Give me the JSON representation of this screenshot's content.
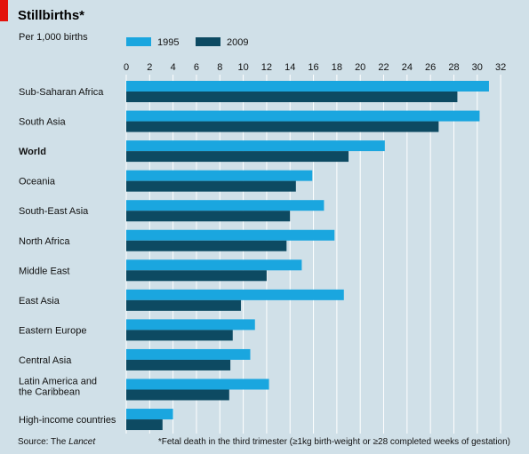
{
  "header": {
    "title": "Stillbirths*",
    "subtitle": "Per 1,000 births"
  },
  "colors": {
    "background": "#d0e0e8",
    "accent_tab": "#e3120b",
    "series_1995": "#1aa6df",
    "series_2009": "#0d4a62",
    "gridline": "#ffffff"
  },
  "footer": {
    "source_prefix": "Source: The ",
    "source_name": "Lancet",
    "note": "*Fetal death in the third trimester (≥1kg birth-weight or ≥28 completed weeks of gestation)"
  },
  "chart_data": {
    "type": "bar",
    "orientation": "horizontal",
    "title": "Stillbirths*",
    "subtitle": "Per 1,000 births",
    "xlim": [
      0,
      32
    ],
    "xticks": [
      0,
      2,
      4,
      6,
      8,
      10,
      12,
      14,
      16,
      18,
      20,
      22,
      24,
      26,
      28,
      30,
      32
    ],
    "grid": true,
    "legend_position": "top-left",
    "categories": [
      "Sub-Saharan Africa",
      "South Asia",
      "World",
      "Oceania",
      "South-East Asia",
      "North Africa",
      "Middle East",
      "East Asia",
      "Eastern Europe",
      "Central Asia",
      "Latin America and the Caribbean",
      "High-income countries"
    ],
    "category_label_lines": [
      [
        "Sub-Saharan Africa"
      ],
      [
        "South Asia"
      ],
      [
        "World"
      ],
      [
        "Oceania"
      ],
      [
        "South-East Asia"
      ],
      [
        "North Africa"
      ],
      [
        "Middle East"
      ],
      [
        "East Asia"
      ],
      [
        "Eastern Europe"
      ],
      [
        "Central Asia"
      ],
      [
        "Latin America and",
        "the Caribbean"
      ],
      [
        "High-income countries"
      ]
    ],
    "highlighted_category": "World",
    "series": [
      {
        "name": "1995",
        "color": "#1aa6df",
        "values": [
          31.0,
          30.2,
          22.1,
          15.9,
          16.9,
          17.8,
          15.0,
          18.6,
          11.0,
          10.6,
          12.2,
          4.0
        ]
      },
      {
        "name": "2009",
        "color": "#0d4a62",
        "values": [
          28.3,
          26.7,
          19.0,
          14.5,
          14.0,
          13.7,
          12.0,
          9.8,
          9.1,
          8.9,
          8.8,
          3.1
        ]
      }
    ]
  }
}
